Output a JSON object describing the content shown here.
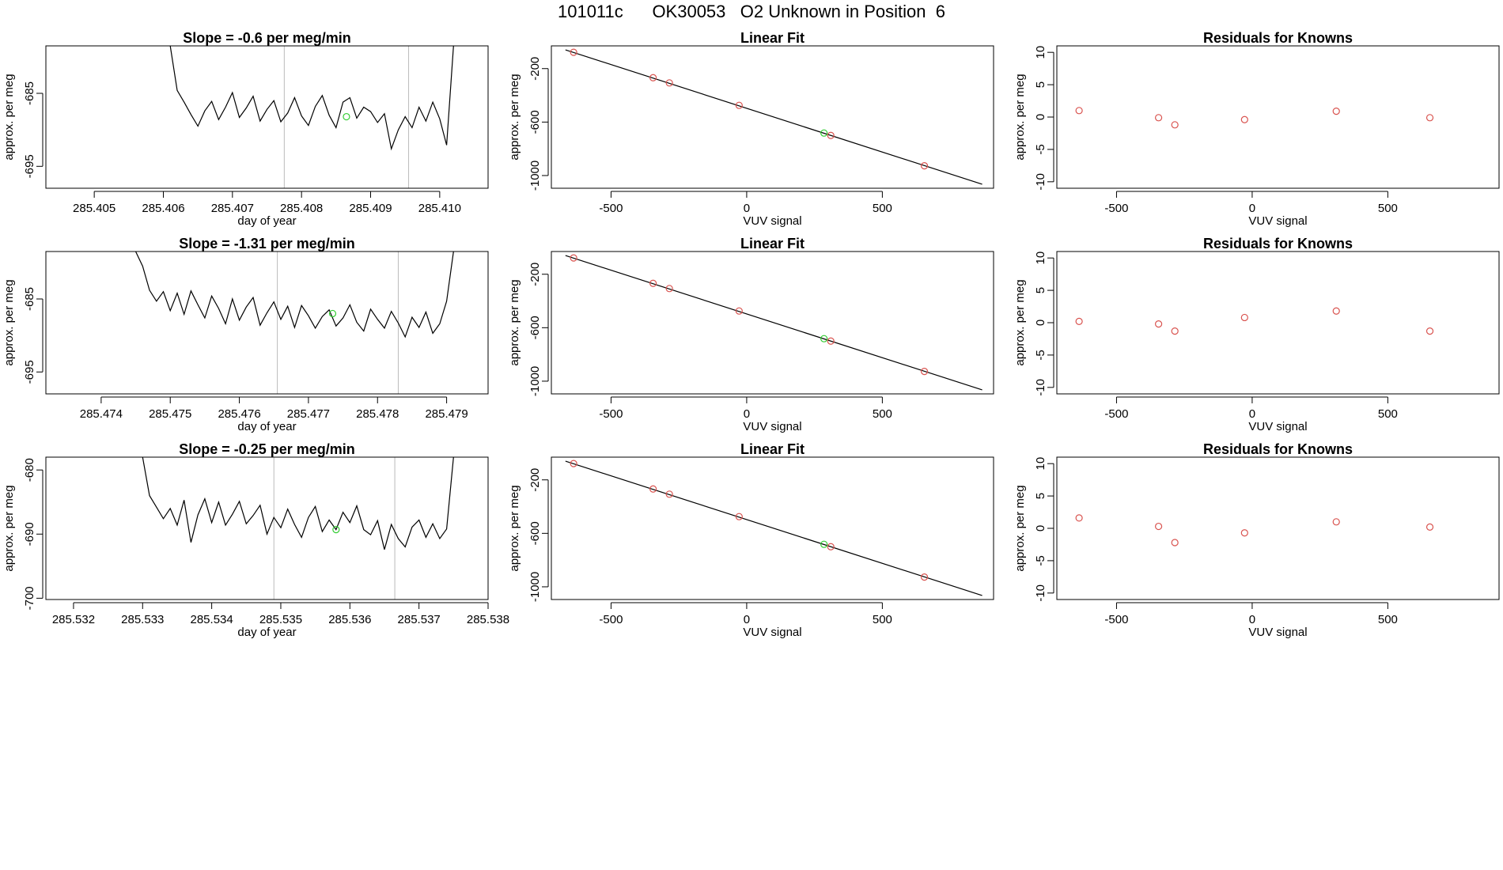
{
  "title": "101011c      OK30053   O2 Unknown in Position  6",
  "colors": {
    "line": "#000000",
    "point": "#d9534f",
    "unknown": "#33cc33",
    "vline": "#bbbbbb"
  },
  "chart_data": [
    {
      "id": "ts1",
      "type": "line",
      "title": "Slope =  -0.6  per meg/min",
      "xlabel": "day of year",
      "ylabel": "approx. per meg",
      "xlim": [
        285.4043,
        285.4107
      ],
      "ylim": [
        -698.0,
        -678.5
      ],
      "xticks": [
        285.405,
        285.406,
        285.407,
        285.408,
        285.409,
        285.41
      ],
      "xtick_labels": [
        "285.405",
        "285.406",
        "285.407",
        "285.408",
        "285.409",
        "285.410"
      ],
      "yticks": [
        -685,
        -695
      ],
      "ytick_labels": [
        "-685",
        "-695"
      ],
      "vlines": [
        285.40775,
        285.40955
      ],
      "unknown_point": {
        "x": 285.40865,
        "y": -688.2
      },
      "x": [
        285.4061,
        285.4062,
        285.4063,
        285.4064,
        285.4065,
        285.4066,
        285.4067,
        285.4068,
        285.4069,
        285.407,
        285.4071,
        285.4072,
        285.4073,
        285.4074,
        285.4075,
        285.4076,
        285.4077,
        285.4078,
        285.4079,
        285.408,
        285.4081,
        285.4082,
        285.4083,
        285.4084,
        285.4085,
        285.4086,
        285.4087,
        285.4088,
        285.4089,
        285.409,
        285.4091,
        285.4092,
        285.4093,
        285.4094,
        285.4095,
        285.4096,
        285.4097,
        285.4098,
        285.4099,
        285.41,
        285.4101,
        285.4102
      ],
      "y": [
        -678.5,
        -684.6,
        -686.2,
        -687.9,
        -689.5,
        -687.4,
        -686.1,
        -688.6,
        -686.9,
        -684.9,
        -688.3,
        -687.0,
        -685.4,
        -688.8,
        -687.2,
        -686.0,
        -688.9,
        -687.7,
        -685.6,
        -688.1,
        -689.4,
        -686.8,
        -685.3,
        -688.0,
        -689.7,
        -686.2,
        -685.6,
        -688.4,
        -686.9,
        -687.5,
        -689.0,
        -687.8,
        -692.6,
        -690.0,
        -688.2,
        -689.7,
        -686.9,
        -688.8,
        -686.2,
        -688.5,
        -692.1,
        -678.5
      ]
    },
    {
      "id": "lf1",
      "type": "scatter",
      "title": "Linear Fit",
      "xlabel": "VUV signal",
      "ylabel": "approx. per meg",
      "xlim": [
        -720,
        910
      ],
      "ylim": [
        -1095,
        -30
      ],
      "xticks": [
        -500,
        0,
        500
      ],
      "xtick_labels": [
        "-500",
        "0",
        "500"
      ],
      "yticks": [
        -200,
        -600,
        -1000
      ],
      "ytick_labels": [
        "-200",
        "-600",
        "-1000"
      ],
      "fit_line": {
        "x": [
          -668,
          868
        ],
        "y": [
          -60,
          -1065
        ]
      },
      "known_points": {
        "x": [
          -638,
          -345,
          -285,
          -28,
          310,
          655
        ],
        "y": [
          -78,
          -268,
          -307,
          -475,
          -700,
          -927
        ]
      },
      "unknown_point": {
        "x": 285,
        "y": -682
      }
    },
    {
      "id": "res1",
      "type": "scatter",
      "title": "Residuals for Knowns",
      "xlabel": "VUV signal",
      "ylabel": "approx. per meg",
      "xlim": [
        -720,
        910
      ],
      "ylim": [
        -11,
        11
      ],
      "xticks": [
        -500,
        0,
        500
      ],
      "xtick_labels": [
        "-500",
        "0",
        "500"
      ],
      "yticks": [
        10,
        5,
        0,
        -5,
        -10
      ],
      "ytick_labels": [
        "10",
        "5",
        "0",
        "-5",
        "-10"
      ],
      "points": {
        "x": [
          -638,
          -345,
          -285,
          -28,
          310,
          655
        ],
        "y": [
          1.0,
          -0.1,
          -1.2,
          -0.4,
          0.9,
          -0.1
        ]
      }
    },
    {
      "id": "ts2",
      "type": "line",
      "title": "Slope =  -1.31  per meg/min",
      "xlabel": "day of year",
      "ylabel": "approx. per meg",
      "xlim": [
        285.4732,
        285.4796
      ],
      "ylim": [
        -698.0,
        -678.5
      ],
      "xticks": [
        285.474,
        285.475,
        285.476,
        285.477,
        285.478,
        285.479
      ],
      "xtick_labels": [
        "285.474",
        "285.475",
        "285.476",
        "285.477",
        "285.478",
        "285.479"
      ],
      "yticks": [
        -685,
        -695
      ],
      "ytick_labels": [
        "-685",
        "-695"
      ],
      "vlines": [
        285.47655,
        285.4783
      ],
      "unknown_point": {
        "x": 285.47735,
        "y": -687.0
      },
      "x": [
        285.4745,
        285.4746,
        285.4747,
        285.4748,
        285.4749,
        285.475,
        285.4751,
        285.4752,
        285.4753,
        285.4754,
        285.4755,
        285.4756,
        285.4757,
        285.4758,
        285.4759,
        285.476,
        285.4761,
        285.4762,
        285.4763,
        285.4764,
        285.4765,
        285.4766,
        285.4767,
        285.4768,
        285.4769,
        285.477,
        285.4771,
        285.4772,
        285.4773,
        285.4774,
        285.4775,
        285.4776,
        285.4777,
        285.4778,
        285.4779,
        285.478,
        285.4781,
        285.4782,
        285.4783,
        285.4784,
        285.4785,
        285.4786,
        285.4787,
        285.4788,
        285.4789,
        285.479,
        285.4791
      ],
      "y": [
        -678.5,
        -680.5,
        -683.8,
        -685.3,
        -684.0,
        -686.6,
        -684.2,
        -687.1,
        -683.9,
        -685.8,
        -687.6,
        -684.6,
        -686.3,
        -688.4,
        -685.0,
        -687.9,
        -686.1,
        -684.8,
        -688.6,
        -686.9,
        -685.4,
        -687.8,
        -686.0,
        -688.9,
        -685.9,
        -687.3,
        -689.0,
        -687.4,
        -686.5,
        -688.7,
        -687.6,
        -685.8,
        -688.2,
        -689.4,
        -686.4,
        -687.8,
        -689.0,
        -686.7,
        -688.3,
        -690.2,
        -687.5,
        -688.9,
        -686.8,
        -689.7,
        -688.4,
        -685.3,
        -678.5
      ]
    },
    {
      "id": "lf2",
      "type": "scatter",
      "title": "Linear Fit",
      "xlabel": "VUV signal",
      "ylabel": "approx. per meg",
      "xlim": [
        -720,
        910
      ],
      "ylim": [
        -1095,
        -30
      ],
      "xticks": [
        -500,
        0,
        500
      ],
      "xtick_labels": [
        "-500",
        "0",
        "500"
      ],
      "yticks": [
        -200,
        -600,
        -1000
      ],
      "ytick_labels": [
        "-200",
        "-600",
        "-1000"
      ],
      "fit_line": {
        "x": [
          -668,
          868
        ],
        "y": [
          -60,
          -1065
        ]
      },
      "known_points": {
        "x": [
          -638,
          -345,
          -285,
          -28,
          310,
          655
        ],
        "y": [
          -78,
          -268,
          -307,
          -475,
          -700,
          -927
        ]
      },
      "unknown_point": {
        "x": 285,
        "y": -682
      }
    },
    {
      "id": "res2",
      "type": "scatter",
      "title": "Residuals for Knowns",
      "xlabel": "VUV signal",
      "ylabel": "approx. per meg",
      "xlim": [
        -720,
        910
      ],
      "ylim": [
        -11,
        11
      ],
      "xticks": [
        -500,
        0,
        500
      ],
      "xtick_labels": [
        "-500",
        "0",
        "500"
      ],
      "yticks": [
        10,
        5,
        0,
        -5,
        -10
      ],
      "ytick_labels": [
        "10",
        "5",
        "0",
        "-5",
        "-10"
      ],
      "points": {
        "x": [
          -638,
          -345,
          -285,
          -28,
          310,
          655
        ],
        "y": [
          0.2,
          -0.2,
          -1.3,
          0.8,
          1.8,
          -1.3
        ]
      }
    },
    {
      "id": "ts3",
      "type": "line",
      "title": "Slope =  -0.25  per meg/min",
      "xlabel": "day of year",
      "ylabel": "approx. per meg",
      "xlim": [
        285.5316,
        285.538
      ],
      "ylim": [
        -700.2,
        -678.0
      ],
      "xticks": [
        285.532,
        285.533,
        285.534,
        285.535,
        285.536,
        285.537,
        285.538
      ],
      "xtick_labels": [
        "285.532",
        "285.533",
        "285.534",
        "285.535",
        "285.536",
        "285.537",
        "285.538"
      ],
      "yticks": [
        -680,
        -690,
        -700
      ],
      "ytick_labels": [
        "-680",
        "-690",
        "-700"
      ],
      "vlines": [
        285.5349,
        285.53665
      ],
      "unknown_point": {
        "x": 285.5358,
        "y": -689.3
      },
      "x": [
        285.533,
        285.5331,
        285.5332,
        285.5333,
        285.5334,
        285.5335,
        285.5336,
        285.5337,
        285.5338,
        285.5339,
        285.534,
        285.5341,
        285.5342,
        285.5343,
        285.5344,
        285.5345,
        285.5346,
        285.5347,
        285.5348,
        285.5349,
        285.535,
        285.5351,
        285.5352,
        285.5353,
        285.5354,
        285.5355,
        285.5356,
        285.5357,
        285.5358,
        285.5359,
        285.536,
        285.5361,
        285.5362,
        285.5363,
        285.5364,
        285.5365,
        285.5366,
        285.5367,
        285.5368,
        285.5369,
        285.537,
        285.5371,
        285.5372,
        285.5373,
        285.5374,
        285.5375
      ],
      "y": [
        -678.0,
        -684.0,
        -685.8,
        -687.6,
        -686.0,
        -688.6,
        -684.7,
        -691.3,
        -687.0,
        -684.5,
        -688.2,
        -685.0,
        -688.6,
        -686.9,
        -684.9,
        -688.4,
        -687.1,
        -685.5,
        -690.0,
        -687.4,
        -689.0,
        -686.1,
        -688.5,
        -690.5,
        -687.4,
        -685.7,
        -689.6,
        -687.8,
        -689.3,
        -686.6,
        -688.2,
        -685.6,
        -689.3,
        -690.1,
        -687.9,
        -692.4,
        -688.5,
        -690.7,
        -692.0,
        -688.9,
        -687.8,
        -690.5,
        -688.4,
        -690.7,
        -689.2,
        -678.0
      ]
    },
    {
      "id": "lf3",
      "type": "scatter",
      "title": "Linear Fit",
      "xlabel": "VUV signal",
      "ylabel": "approx. per meg",
      "xlim": [
        -720,
        910
      ],
      "ylim": [
        -1095,
        -30
      ],
      "xticks": [
        -500,
        0,
        500
      ],
      "xtick_labels": [
        "-500",
        "0",
        "500"
      ],
      "yticks": [
        -200,
        -600,
        -1000
      ],
      "ytick_labels": [
        "-200",
        "-600",
        "-1000"
      ],
      "fit_line": {
        "x": [
          -668,
          868
        ],
        "y": [
          -60,
          -1065
        ]
      },
      "known_points": {
        "x": [
          -638,
          -345,
          -285,
          -28,
          310,
          655
        ],
        "y": [
          -78,
          -268,
          -307,
          -475,
          -700,
          -927
        ]
      },
      "unknown_point": {
        "x": 285,
        "y": -682
      }
    },
    {
      "id": "res3",
      "type": "scatter",
      "title": "Residuals for Knowns",
      "xlabel": "VUV signal",
      "ylabel": "approx. per meg",
      "xlim": [
        -720,
        910
      ],
      "ylim": [
        -11,
        11
      ],
      "xticks": [
        -500,
        0,
        500
      ],
      "xtick_labels": [
        "-500",
        "0",
        "500"
      ],
      "yticks": [
        10,
        5,
        0,
        -5,
        -10
      ],
      "ytick_labels": [
        "10",
        "5",
        "0",
        "-5",
        "-10"
      ],
      "points": {
        "x": [
          -638,
          -345,
          -285,
          -28,
          310,
          655
        ],
        "y": [
          1.6,
          0.3,
          -2.2,
          -0.7,
          1.0,
          0.2
        ]
      }
    }
  ]
}
